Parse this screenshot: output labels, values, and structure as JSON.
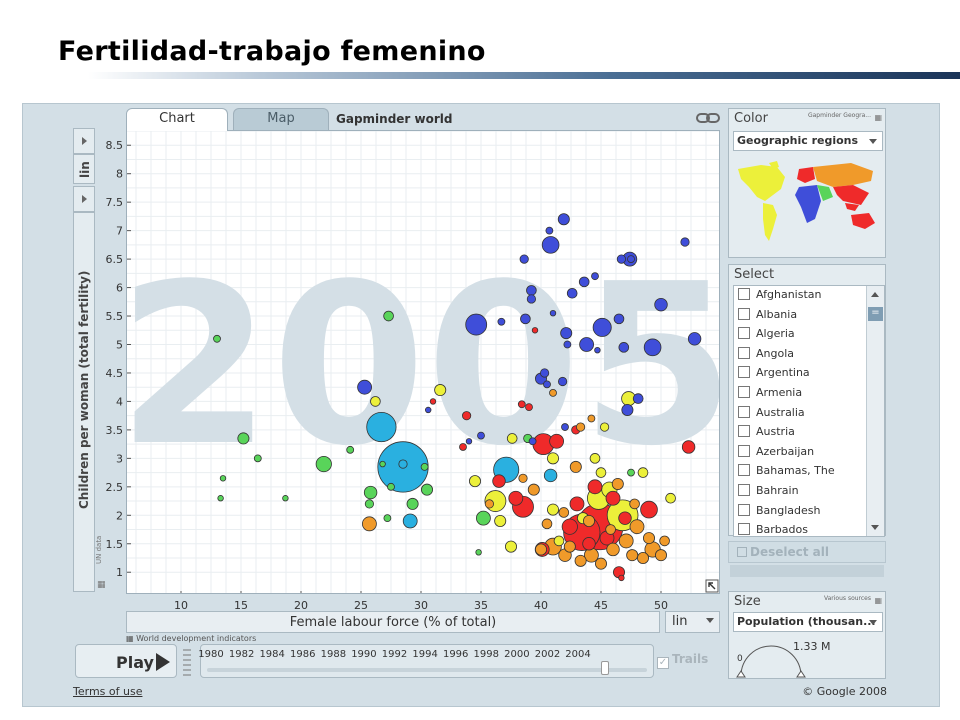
{
  "slide": {
    "title": "Fertilidad-trabajo femenino"
  },
  "tabs": [
    {
      "label": "Chart"
    },
    {
      "label": "Map"
    }
  ],
  "gapminder_title": "Gapminder world",
  "year_watermark": "2005",
  "y_axis": {
    "label": "Children per woman (total fertility)",
    "scale": "lin",
    "source": "UN data",
    "ticks": [
      "1",
      "1.5",
      "2",
      "2.5",
      "3",
      "3.5",
      "4",
      "4.5",
      "5",
      "5.5",
      "6",
      "6.5",
      "7",
      "7.5",
      "8",
      "8.5"
    ]
  },
  "x_axis": {
    "label": "Female labour force (% of total)",
    "scale": "lin",
    "source": "World development indicators",
    "ticks": [
      "10",
      "15",
      "20",
      "25",
      "30",
      "35",
      "40",
      "45",
      "50"
    ]
  },
  "colors": {
    "blue": "#3f4ed9",
    "green": "#59d45a",
    "red": "#ef2a2a",
    "orange": "#f09a2a",
    "yellow": "#ecf03a",
    "cyan": "#2ab0e0"
  },
  "chart_data": {
    "type": "scatter",
    "xlabel": "Female labour force (% of total)",
    "ylabel": "Children per woman (total fertility)",
    "xlim": [
      5.5,
      55
    ],
    "ylim": [
      0.6,
      8.75
    ],
    "points": [
      {
        "x": 28.5,
        "y": 2.85,
        "s": 3.6,
        "c": "cyan"
      },
      {
        "x": 26.7,
        "y": 3.55,
        "s": 2.1,
        "c": "cyan"
      },
      {
        "x": 37.1,
        "y": 2.8,
        "s": 1.8,
        "c": "cyan"
      },
      {
        "x": 29.1,
        "y": 1.9,
        "s": 1.0,
        "c": "cyan"
      },
      {
        "x": 28.5,
        "y": 2.9,
        "s": 0.6,
        "c": "cyan"
      },
      {
        "x": 40.8,
        "y": 2.7,
        "s": 0.9,
        "c": "cyan"
      },
      {
        "x": 44.9,
        "y": 1.8,
        "s": 3.3,
        "c": "red"
      },
      {
        "x": 43.4,
        "y": 1.7,
        "s": 2.6,
        "c": "red"
      },
      {
        "x": 38.5,
        "y": 2.15,
        "s": 1.5,
        "c": "red"
      },
      {
        "x": 40.2,
        "y": 3.25,
        "s": 1.5,
        "c": "red"
      },
      {
        "x": 49.0,
        "y": 2.1,
        "s": 1.2,
        "c": "red"
      },
      {
        "x": 36.5,
        "y": 2.6,
        "s": 0.9,
        "c": "red"
      },
      {
        "x": 52.3,
        "y": 3.2,
        "s": 0.9,
        "c": "red"
      },
      {
        "x": 41.3,
        "y": 3.3,
        "s": 1.0,
        "c": "red"
      },
      {
        "x": 46.5,
        "y": 1.0,
        "s": 0.8,
        "c": "red"
      },
      {
        "x": 44.0,
        "y": 1.5,
        "s": 0.9,
        "c": "red"
      },
      {
        "x": 46.0,
        "y": 2.3,
        "s": 1.0,
        "c": "red"
      },
      {
        "x": 47.0,
        "y": 1.95,
        "s": 0.9,
        "c": "red"
      },
      {
        "x": 42.4,
        "y": 1.8,
        "s": 1.1,
        "c": "red"
      },
      {
        "x": 37.9,
        "y": 2.3,
        "s": 1.0,
        "c": "red"
      },
      {
        "x": 40.1,
        "y": 1.4,
        "s": 1.0,
        "c": "red"
      },
      {
        "x": 43.0,
        "y": 2.2,
        "s": 1.0,
        "c": "red"
      },
      {
        "x": 44.5,
        "y": 2.5,
        "s": 1.0,
        "c": "red"
      },
      {
        "x": 45.5,
        "y": 1.6,
        "s": 1.0,
        "c": "red"
      },
      {
        "x": 42.9,
        "y": 3.5,
        "s": 0.6,
        "c": "red"
      },
      {
        "x": 33.5,
        "y": 3.2,
        "s": 0.5,
        "c": "red"
      },
      {
        "x": 33.8,
        "y": 3.75,
        "s": 0.6,
        "c": "red"
      },
      {
        "x": 38.4,
        "y": 3.95,
        "s": 0.5,
        "c": "red"
      },
      {
        "x": 39.0,
        "y": 3.9,
        "s": 0.5,
        "c": "red"
      },
      {
        "x": 31.0,
        "y": 4.0,
        "s": 0.4,
        "c": "red"
      },
      {
        "x": 39.5,
        "y": 5.25,
        "s": 0.4,
        "c": "red"
      },
      {
        "x": 46.7,
        "y": 0.9,
        "s": 0.4,
        "c": "red"
      },
      {
        "x": 46.8,
        "y": 2.0,
        "s": 2.2,
        "c": "yellow"
      },
      {
        "x": 44.8,
        "y": 2.3,
        "s": 1.6,
        "c": "yellow"
      },
      {
        "x": 36.2,
        "y": 2.25,
        "s": 1.5,
        "c": "yellow"
      },
      {
        "x": 45.7,
        "y": 2.45,
        "s": 1.1,
        "c": "yellow"
      },
      {
        "x": 37.6,
        "y": 3.35,
        "s": 0.7,
        "c": "yellow"
      },
      {
        "x": 31.6,
        "y": 4.2,
        "s": 0.8,
        "c": "yellow"
      },
      {
        "x": 47.3,
        "y": 4.05,
        "s": 1.0,
        "c": "yellow"
      },
      {
        "x": 36.6,
        "y": 1.9,
        "s": 0.8,
        "c": "yellow"
      },
      {
        "x": 34.5,
        "y": 2.6,
        "s": 0.8,
        "c": "yellow"
      },
      {
        "x": 37.5,
        "y": 1.45,
        "s": 0.8,
        "c": "yellow"
      },
      {
        "x": 41.0,
        "y": 2.1,
        "s": 0.8,
        "c": "yellow"
      },
      {
        "x": 43.5,
        "y": 1.95,
        "s": 0.8,
        "c": "yellow"
      },
      {
        "x": 48.5,
        "y": 2.75,
        "s": 0.7,
        "c": "yellow"
      },
      {
        "x": 41.5,
        "y": 1.55,
        "s": 0.7,
        "c": "yellow"
      },
      {
        "x": 26.2,
        "y": 4.0,
        "s": 0.7,
        "c": "yellow"
      },
      {
        "x": 41.0,
        "y": 3.0,
        "s": 0.8,
        "c": "yellow"
      },
      {
        "x": 44.5,
        "y": 3.0,
        "s": 0.7,
        "c": "yellow"
      },
      {
        "x": 45.3,
        "y": 3.55,
        "s": 0.6,
        "c": "yellow"
      },
      {
        "x": 50.8,
        "y": 2.3,
        "s": 0.7,
        "c": "yellow"
      },
      {
        "x": 45.0,
        "y": 2.75,
        "s": 0.7,
        "c": "yellow"
      },
      {
        "x": 41.0,
        "y": 1.45,
        "s": 1.2,
        "c": "orange"
      },
      {
        "x": 49.3,
        "y": 1.4,
        "s": 1.1,
        "c": "orange"
      },
      {
        "x": 47.1,
        "y": 1.55,
        "s": 1.0,
        "c": "orange"
      },
      {
        "x": 25.7,
        "y": 1.85,
        "s": 1.0,
        "c": "orange"
      },
      {
        "x": 44.2,
        "y": 1.3,
        "s": 1.0,
        "c": "orange"
      },
      {
        "x": 48.0,
        "y": 1.8,
        "s": 1.0,
        "c": "orange"
      },
      {
        "x": 42.0,
        "y": 1.3,
        "s": 0.9,
        "c": "orange"
      },
      {
        "x": 46.0,
        "y": 1.4,
        "s": 0.9,
        "c": "orange"
      },
      {
        "x": 50.0,
        "y": 1.3,
        "s": 0.8,
        "c": "orange"
      },
      {
        "x": 40.0,
        "y": 1.4,
        "s": 0.8,
        "c": "orange"
      },
      {
        "x": 43.3,
        "y": 1.2,
        "s": 0.8,
        "c": "orange"
      },
      {
        "x": 45.0,
        "y": 1.15,
        "s": 0.8,
        "c": "orange"
      },
      {
        "x": 48.5,
        "y": 1.25,
        "s": 0.8,
        "c": "orange"
      },
      {
        "x": 39.4,
        "y": 2.45,
        "s": 0.8,
        "c": "orange"
      },
      {
        "x": 42.9,
        "y": 2.85,
        "s": 0.8,
        "c": "orange"
      },
      {
        "x": 46.4,
        "y": 2.55,
        "s": 0.8,
        "c": "orange"
      },
      {
        "x": 47.6,
        "y": 1.3,
        "s": 0.8,
        "c": "orange"
      },
      {
        "x": 44.0,
        "y": 1.9,
        "s": 0.8,
        "c": "orange"
      },
      {
        "x": 42.4,
        "y": 1.45,
        "s": 0.8,
        "c": "orange"
      },
      {
        "x": 41.9,
        "y": 2.05,
        "s": 0.7,
        "c": "orange"
      },
      {
        "x": 45.8,
        "y": 1.75,
        "s": 0.7,
        "c": "orange"
      },
      {
        "x": 47.8,
        "y": 2.2,
        "s": 0.7,
        "c": "orange"
      },
      {
        "x": 43.3,
        "y": 3.55,
        "s": 0.6,
        "c": "orange"
      },
      {
        "x": 41.0,
        "y": 4.15,
        "s": 0.5,
        "c": "orange"
      },
      {
        "x": 35.7,
        "y": 2.2,
        "s": 0.6,
        "c": "orange"
      },
      {
        "x": 38.5,
        "y": 2.65,
        "s": 0.6,
        "c": "orange"
      },
      {
        "x": 44.2,
        "y": 3.7,
        "s": 0.5,
        "c": "orange"
      },
      {
        "x": 49.0,
        "y": 1.6,
        "s": 0.8,
        "c": "orange"
      },
      {
        "x": 50.3,
        "y": 1.55,
        "s": 0.7,
        "c": "orange"
      },
      {
        "x": 40.5,
        "y": 1.85,
        "s": 0.7,
        "c": "orange"
      },
      {
        "x": 34.6,
        "y": 5.35,
        "s": 1.5,
        "c": "blue"
      },
      {
        "x": 40.8,
        "y": 6.75,
        "s": 1.2,
        "c": "blue"
      },
      {
        "x": 45.1,
        "y": 5.3,
        "s": 1.3,
        "c": "blue"
      },
      {
        "x": 49.3,
        "y": 4.95,
        "s": 1.2,
        "c": "blue"
      },
      {
        "x": 47.4,
        "y": 6.5,
        "s": 1.0,
        "c": "blue"
      },
      {
        "x": 43.8,
        "y": 5.0,
        "s": 1.0,
        "c": "blue"
      },
      {
        "x": 25.3,
        "y": 4.25,
        "s": 1.0,
        "c": "blue"
      },
      {
        "x": 50.0,
        "y": 5.7,
        "s": 0.9,
        "c": "blue"
      },
      {
        "x": 52.8,
        "y": 5.1,
        "s": 0.9,
        "c": "blue"
      },
      {
        "x": 52.0,
        "y": 6.8,
        "s": 0.6,
        "c": "blue"
      },
      {
        "x": 42.1,
        "y": 5.2,
        "s": 0.8,
        "c": "blue"
      },
      {
        "x": 41.9,
        "y": 7.2,
        "s": 0.8,
        "c": "blue"
      },
      {
        "x": 47.2,
        "y": 3.85,
        "s": 0.8,
        "c": "blue"
      },
      {
        "x": 40.0,
        "y": 4.4,
        "s": 0.8,
        "c": "blue"
      },
      {
        "x": 38.7,
        "y": 5.45,
        "s": 0.7,
        "c": "blue"
      },
      {
        "x": 43.6,
        "y": 6.1,
        "s": 0.7,
        "c": "blue"
      },
      {
        "x": 48.1,
        "y": 4.05,
        "s": 0.7,
        "c": "blue"
      },
      {
        "x": 46.5,
        "y": 5.45,
        "s": 0.7,
        "c": "blue"
      },
      {
        "x": 39.2,
        "y": 5.95,
        "s": 0.7,
        "c": "blue"
      },
      {
        "x": 42.6,
        "y": 5.9,
        "s": 0.7,
        "c": "blue"
      },
      {
        "x": 46.9,
        "y": 4.95,
        "s": 0.7,
        "c": "blue"
      },
      {
        "x": 41.8,
        "y": 4.35,
        "s": 0.6,
        "c": "blue"
      },
      {
        "x": 40.3,
        "y": 4.5,
        "s": 0.6,
        "c": "blue"
      },
      {
        "x": 46.7,
        "y": 6.5,
        "s": 0.6,
        "c": "blue"
      },
      {
        "x": 40.7,
        "y": 7.0,
        "s": 0.5,
        "c": "blue"
      },
      {
        "x": 38.6,
        "y": 6.5,
        "s": 0.6,
        "c": "blue"
      },
      {
        "x": 42.2,
        "y": 5.0,
        "s": 0.5,
        "c": "blue"
      },
      {
        "x": 39.2,
        "y": 5.8,
        "s": 0.6,
        "c": "blue"
      },
      {
        "x": 36.7,
        "y": 5.4,
        "s": 0.5,
        "c": "blue"
      },
      {
        "x": 35.0,
        "y": 3.4,
        "s": 0.5,
        "c": "blue"
      },
      {
        "x": 44.5,
        "y": 6.2,
        "s": 0.5,
        "c": "blue"
      },
      {
        "x": 39.3,
        "y": 3.3,
        "s": 0.5,
        "c": "blue"
      },
      {
        "x": 40.5,
        "y": 4.3,
        "s": 0.5,
        "c": "blue"
      },
      {
        "x": 47.5,
        "y": 6.5,
        "s": 0.5,
        "c": "blue"
      },
      {
        "x": 42.0,
        "y": 3.55,
        "s": 0.5,
        "c": "blue"
      },
      {
        "x": 34.0,
        "y": 3.3,
        "s": 0.4,
        "c": "blue"
      },
      {
        "x": 41.0,
        "y": 5.55,
        "s": 0.4,
        "c": "blue"
      },
      {
        "x": 44.7,
        "y": 4.9,
        "s": 0.4,
        "c": "blue"
      },
      {
        "x": 30.6,
        "y": 3.85,
        "s": 0.4,
        "c": "blue"
      },
      {
        "x": 21.9,
        "y": 2.9,
        "s": 1.1,
        "c": "green"
      },
      {
        "x": 15.2,
        "y": 3.35,
        "s": 0.8,
        "c": "green"
      },
      {
        "x": 27.3,
        "y": 5.5,
        "s": 0.7,
        "c": "green"
      },
      {
        "x": 35.2,
        "y": 1.95,
        "s": 1.0,
        "c": "green"
      },
      {
        "x": 25.8,
        "y": 2.4,
        "s": 0.9,
        "c": "green"
      },
      {
        "x": 29.3,
        "y": 2.2,
        "s": 0.8,
        "c": "green"
      },
      {
        "x": 30.5,
        "y": 2.45,
        "s": 0.8,
        "c": "green"
      },
      {
        "x": 25.7,
        "y": 2.2,
        "s": 0.6,
        "c": "green"
      },
      {
        "x": 13.0,
        "y": 5.1,
        "s": 0.5,
        "c": "green"
      },
      {
        "x": 16.4,
        "y": 3.0,
        "s": 0.5,
        "c": "green"
      },
      {
        "x": 13.5,
        "y": 2.65,
        "s": 0.4,
        "c": "green"
      },
      {
        "x": 13.3,
        "y": 2.3,
        "s": 0.4,
        "c": "green"
      },
      {
        "x": 18.7,
        "y": 2.3,
        "s": 0.4,
        "c": "green"
      },
      {
        "x": 24.1,
        "y": 3.15,
        "s": 0.5,
        "c": "green"
      },
      {
        "x": 27.5,
        "y": 2.5,
        "s": 0.5,
        "c": "green"
      },
      {
        "x": 27.2,
        "y": 1.95,
        "s": 0.5,
        "c": "green"
      },
      {
        "x": 30.3,
        "y": 2.85,
        "s": 0.5,
        "c": "green"
      },
      {
        "x": 38.9,
        "y": 3.35,
        "s": 0.6,
        "c": "green"
      },
      {
        "x": 47.5,
        "y": 2.75,
        "s": 0.5,
        "c": "green"
      },
      {
        "x": 34.8,
        "y": 1.35,
        "s": 0.4,
        "c": "green"
      },
      {
        "x": 26.8,
        "y": 2.9,
        "s": 0.4,
        "c": "green"
      }
    ]
  },
  "color_panel": {
    "title": "Color",
    "source": "Gapminder Geogra...",
    "selected": "Geographic regions"
  },
  "select_panel": {
    "title": "Select",
    "countries": [
      "Afghanistan",
      "Albania",
      "Algeria",
      "Angola",
      "Argentina",
      "Armenia",
      "Australia",
      "Austria",
      "Azerbaijan",
      "Bahamas, The",
      "Bahrain",
      "Bangladesh",
      "Barbados"
    ],
    "scroll_thumb": "="
  },
  "deselect_all": "Deselect all",
  "size_panel": {
    "title": "Size",
    "source": "Various sources",
    "selected": "Population (thousan...",
    "value": "1.33 M",
    "zero": "0"
  },
  "play": {
    "label": "Play"
  },
  "timeline": {
    "years": [
      "1980",
      "1982",
      "1984",
      "1986",
      "1988",
      "1990",
      "1992",
      "1994",
      "1996",
      "1998",
      "2000",
      "2002",
      "2004"
    ],
    "current": 2005,
    "start": 1980,
    "end": 2007
  },
  "trails": {
    "label": "Trails",
    "check": "✓"
  },
  "footer": {
    "terms": "Terms of use",
    "copyright": "© Google 2008"
  }
}
